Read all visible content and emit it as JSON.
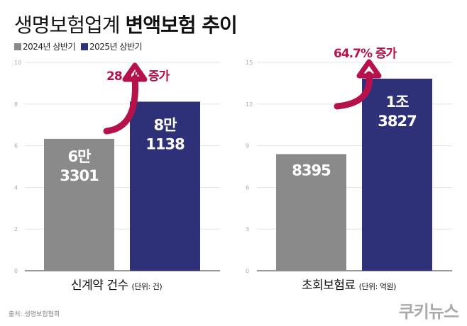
{
  "title": {
    "regular": "생명보험업계",
    "bold": "변액보험 추이"
  },
  "legend": [
    {
      "label": "2024년 상반기",
      "color": "#8a8a8a"
    },
    {
      "label": "2025년 상반기",
      "color": "#2f3178"
    }
  ],
  "source": "출처: 생명보험협회",
  "logo": "쿠키뉴스",
  "colors": {
    "gray": "#8a8a8a",
    "navy": "#2f3178",
    "accent": "#b5124b",
    "grid": "#e3e3e3"
  },
  "chart_data": [
    {
      "type": "bar",
      "xlabel": "신계약 건수",
      "unit": "(단위: 건)",
      "ylim": [
        0,
        10
      ],
      "yticks": [
        0,
        2,
        4,
        6,
        8,
        10
      ],
      "categories": [
        "2024년 상반기",
        "2025년 상반기"
      ],
      "values": [
        6.3301,
        8.1138
      ],
      "data_labels": [
        [
          "6만",
          "3301"
        ],
        [
          "8만",
          "1138"
        ]
      ],
      "annotation": "28.1% 증가",
      "grid": true
    },
    {
      "type": "bar",
      "xlabel": "초회보험료",
      "unit": "(단위: 억원)",
      "ylim": [
        0,
        15
      ],
      "yticks": [
        0,
        3,
        6,
        9,
        12,
        15
      ],
      "categories": [
        "2024년 상반기",
        "2025년 상반기"
      ],
      "values": [
        8.395,
        13.827
      ],
      "data_labels": [
        [
          "8395"
        ],
        [
          "1조",
          "3827"
        ]
      ],
      "annotation": "64.7% 증가",
      "grid": true
    }
  ]
}
